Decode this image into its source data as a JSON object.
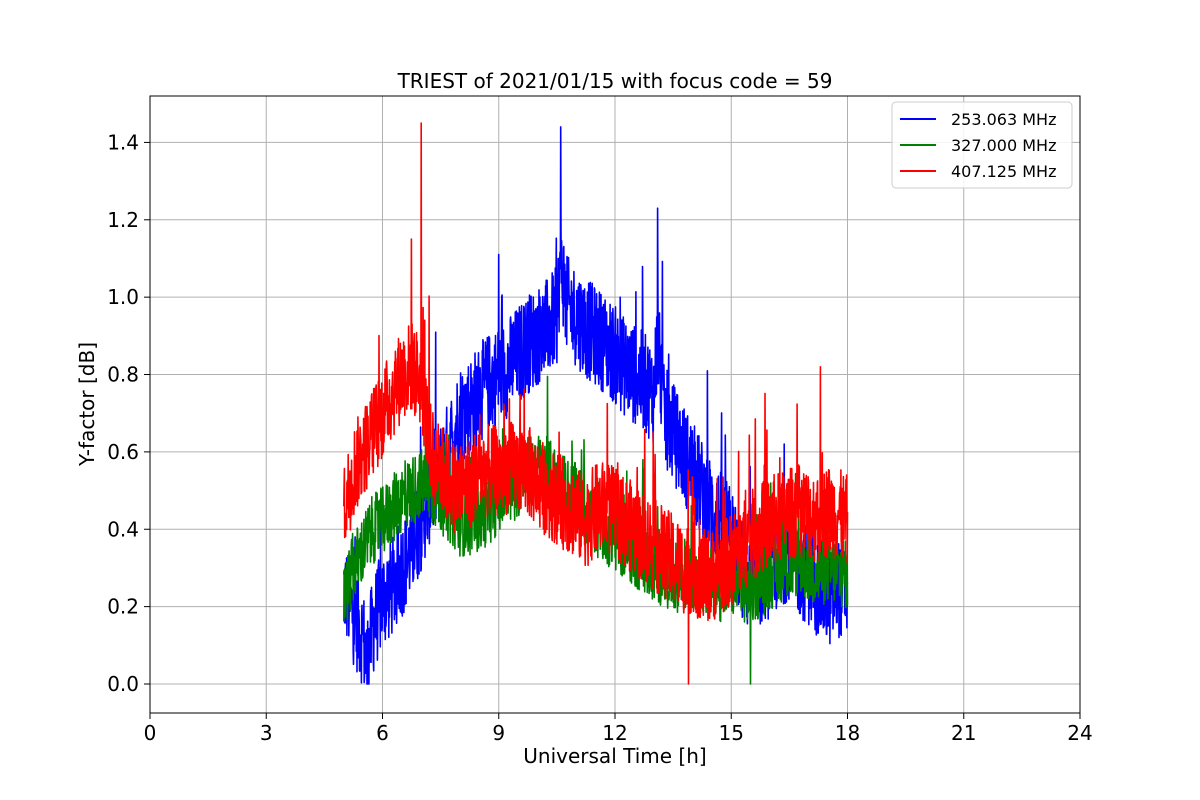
{
  "chart_data": {
    "type": "line",
    "title": "TRIEST of 2021/01/15 with focus code = 59",
    "xlabel": "Universal Time [h]",
    "ylabel": "Y-factor [dB]",
    "xlim": [
      0,
      24
    ],
    "ylim": [
      -0.075,
      1.52
    ],
    "xticks": [
      0,
      3,
      6,
      9,
      12,
      15,
      18,
      21,
      24
    ],
    "yticks": [
      0.0,
      0.2,
      0.4,
      0.6,
      0.8,
      1.0,
      1.2,
      1.4
    ],
    "ytick_labels": [
      "0.0",
      "0.2",
      "0.4",
      "0.6",
      "0.8",
      "1.0",
      "1.2",
      "1.4"
    ],
    "grid": true,
    "legend_position": "top-right",
    "series": [
      {
        "name": "253.063 MHz",
        "color": "#0000ff",
        "x": [
          5.0,
          5.25,
          5.5,
          5.6,
          5.75,
          6.0,
          6.25,
          6.5,
          6.75,
          7.0,
          7.25,
          7.5,
          7.75,
          8.0,
          8.25,
          8.5,
          8.75,
          9.0,
          9.25,
          9.5,
          9.75,
          10.0,
          10.25,
          10.5,
          10.6,
          10.75,
          11.0,
          11.25,
          11.5,
          11.75,
          12.0,
          12.25,
          12.5,
          12.75,
          13.0,
          13.1,
          13.25,
          13.5,
          13.75,
          14.0,
          14.25,
          14.5,
          14.75,
          15.0,
          15.25,
          15.5,
          15.75,
          16.0,
          16.25,
          16.5,
          16.75,
          17.0,
          17.25,
          17.5,
          17.75,
          18.0
        ],
        "y": [
          0.25,
          0.18,
          0.12,
          0.05,
          0.15,
          0.22,
          0.25,
          0.3,
          0.35,
          0.42,
          0.5,
          0.55,
          0.62,
          0.7,
          0.72,
          0.75,
          0.78,
          0.8,
          0.82,
          0.85,
          0.88,
          0.9,
          0.92,
          0.95,
          1.1,
          0.98,
          0.95,
          0.92,
          0.9,
          0.88,
          0.85,
          0.82,
          0.8,
          0.78,
          0.75,
          0.9,
          0.7,
          0.65,
          0.6,
          0.55,
          0.5,
          0.45,
          0.42,
          0.38,
          0.3,
          0.25,
          0.28,
          0.3,
          0.32,
          0.35,
          0.3,
          0.28,
          0.25,
          0.22,
          0.25,
          0.24
        ]
      },
      {
        "name": "327.000 MHz",
        "color": "#008000",
        "x": [
          5.0,
          5.25,
          5.5,
          5.75,
          6.0,
          6.25,
          6.5,
          6.75,
          7.0,
          7.25,
          7.5,
          7.75,
          8.0,
          8.25,
          8.5,
          8.75,
          9.0,
          9.25,
          9.5,
          9.75,
          10.0,
          10.25,
          10.5,
          10.75,
          11.0,
          11.25,
          11.5,
          11.75,
          12.0,
          12.25,
          12.5,
          12.75,
          13.0,
          13.25,
          13.5,
          13.75,
          14.0,
          14.25,
          14.5,
          14.75,
          15.0,
          15.25,
          15.5,
          15.75,
          16.0,
          16.25,
          16.5,
          16.75,
          17.0,
          17.25,
          17.5,
          17.75,
          18.0
        ],
        "y": [
          0.22,
          0.3,
          0.35,
          0.4,
          0.42,
          0.45,
          0.48,
          0.5,
          0.52,
          0.5,
          0.48,
          0.45,
          0.42,
          0.42,
          0.43,
          0.45,
          0.48,
          0.5,
          0.52,
          0.55,
          0.56,
          0.55,
          0.52,
          0.5,
          0.48,
          0.45,
          0.42,
          0.4,
          0.38,
          0.36,
          0.34,
          0.32,
          0.3,
          0.29,
          0.28,
          0.27,
          0.28,
          0.27,
          0.26,
          0.25,
          0.26,
          0.25,
          0.24,
          0.26,
          0.28,
          0.3,
          0.3,
          0.32,
          0.3,
          0.28,
          0.3,
          0.29,
          0.28
        ]
      },
      {
        "name": "407.125 MHz",
        "color": "#ff0000",
        "x": [
          5.0,
          5.25,
          5.5,
          5.75,
          6.0,
          6.25,
          6.5,
          6.75,
          7.0,
          7.25,
          7.5,
          7.75,
          8.0,
          8.25,
          8.5,
          8.75,
          9.0,
          9.25,
          9.5,
          9.75,
          10.0,
          10.25,
          10.5,
          10.75,
          11.0,
          11.25,
          11.5,
          11.75,
          12.0,
          12.25,
          12.5,
          12.75,
          13.0,
          13.25,
          13.5,
          13.75,
          14.0,
          14.25,
          14.5,
          14.75,
          15.0,
          15.25,
          15.5,
          15.75,
          16.0,
          16.25,
          16.5,
          16.75,
          17.0,
          17.25,
          17.5,
          17.75,
          18.0
        ],
        "y": [
          0.45,
          0.55,
          0.6,
          0.65,
          0.7,
          0.75,
          0.8,
          0.82,
          0.78,
          0.6,
          0.55,
          0.52,
          0.5,
          0.52,
          0.55,
          0.55,
          0.55,
          0.56,
          0.56,
          0.55,
          0.52,
          0.5,
          0.48,
          0.46,
          0.44,
          0.42,
          0.45,
          0.46,
          0.44,
          0.42,
          0.4,
          0.38,
          0.36,
          0.34,
          0.32,
          0.3,
          0.3,
          0.28,
          0.28,
          0.3,
          0.32,
          0.35,
          0.38,
          0.4,
          0.42,
          0.43,
          0.44,
          0.45,
          0.44,
          0.43,
          0.45,
          0.44,
          0.42
        ]
      }
    ],
    "peaks": [
      {
        "series": "407.125 MHz",
        "x": 7.0,
        "y": 1.45
      },
      {
        "series": "253.063 MHz",
        "x": 10.6,
        "y": 1.44
      },
      {
        "series": "253.063 MHz",
        "x": 13.1,
        "y": 1.23
      },
      {
        "series": "253.063 MHz",
        "x": 9.0,
        "y": 1.11
      },
      {
        "series": "407.125 MHz",
        "x": 6.75,
        "y": 1.15
      },
      {
        "series": "407.125 MHz",
        "x": 13.9,
        "y": 0.0
      },
      {
        "series": "253.063 MHz",
        "x": 5.6,
        "y": 0.0
      },
      {
        "series": "327.000 MHz",
        "x": 15.5,
        "y": 0.0
      },
      {
        "series": "407.125 MHz",
        "x": 17.3,
        "y": 0.82
      }
    ]
  }
}
